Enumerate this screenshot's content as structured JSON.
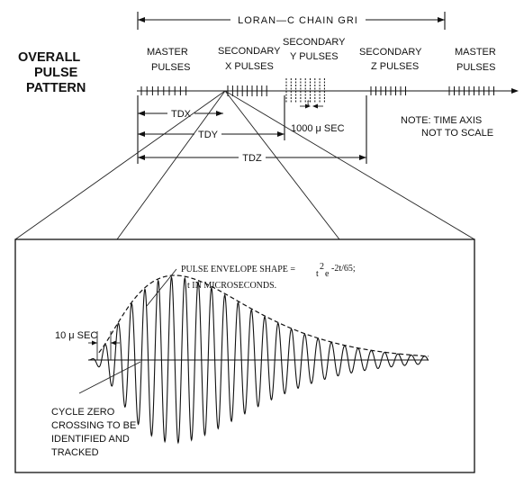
{
  "top": {
    "title_lines": [
      "OVERALL",
      "PULSE",
      "PATTERN"
    ],
    "gri_label": "LORAN—C CHAIN GRI",
    "groups": [
      {
        "lines": [
          "MASTER",
          "PULSES"
        ]
      },
      {
        "lines": [
          "SECONDARY",
          "X PULSES"
        ]
      },
      {
        "lines": [
          "SECONDARY",
          "Y PULSES"
        ]
      },
      {
        "lines": [
          "SECONDARY",
          "Z PULSES"
        ]
      },
      {
        "lines": [
          "MASTER",
          "PULSES"
        ]
      }
    ],
    "tdx": "TDX",
    "tdy": "TDY",
    "tdz": "TDZ",
    "spacing": "1000 μ SEC",
    "spacing_tick": "t",
    "note_lines": [
      "NOTE:  TIME AXIS",
      "NOT TO SCALE"
    ]
  },
  "bottom": {
    "envelope_label": "PULSE ENVELOPE SHAPE =",
    "formula_t": "t",
    "formula_exp2": "2",
    "formula_e": "e",
    "formula_exp": "-2t/65;",
    "envelope_units": "t IN MICROSECONDS.",
    "cycle_label": "10 μ SEC",
    "zero_crossing_lines": [
      "CYCLE ZERO",
      "CROSSING TO BE",
      "IDENTIFIED AND",
      "TRACKED"
    ]
  }
}
